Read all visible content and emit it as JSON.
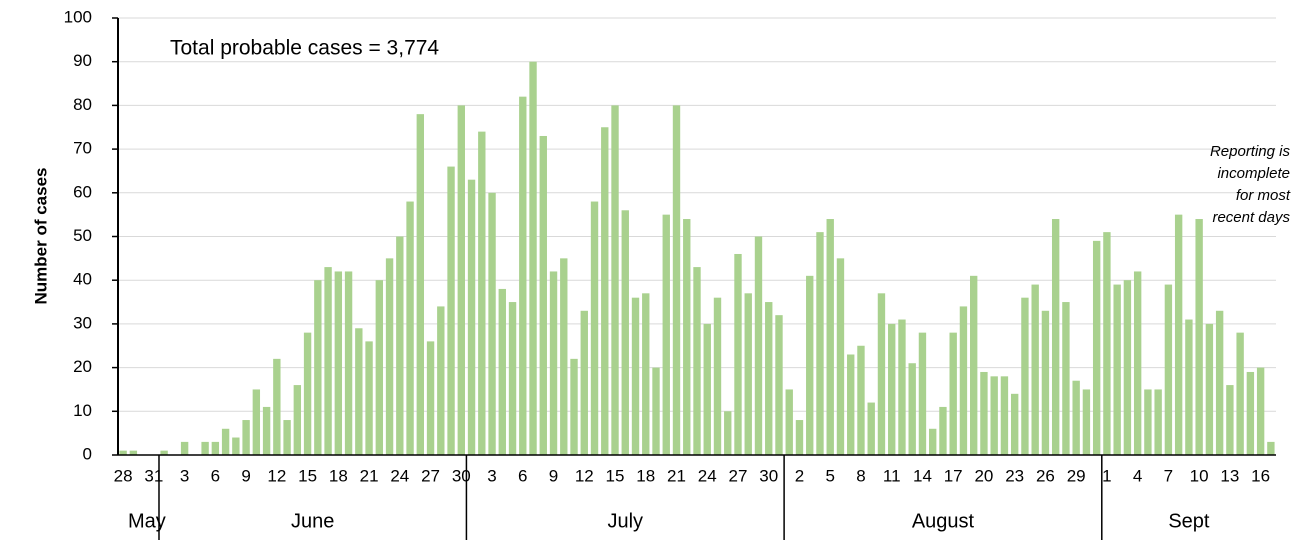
{
  "chart_data": {
    "type": "bar",
    "y_label": "Number of cases",
    "annotation": "Total probable cases = 3,774",
    "note": [
      "Reporting is",
      "incomplete",
      "for most",
      "recent days"
    ],
    "months": [
      "May",
      "June",
      "July",
      "August",
      "Sept"
    ],
    "categories": [
      "28",
      null,
      null,
      "31",
      null,
      null,
      "3",
      null,
      null,
      "6",
      null,
      null,
      "9",
      null,
      null,
      "12",
      null,
      null,
      "15",
      null,
      null,
      "18",
      null,
      null,
      "21",
      null,
      null,
      "24",
      null,
      null,
      "27",
      null,
      null,
      "30",
      null,
      null,
      "3",
      null,
      null,
      "6",
      null,
      null,
      "9",
      null,
      null,
      "12",
      null,
      null,
      "15",
      null,
      null,
      "18",
      null,
      null,
      "21",
      null,
      null,
      "24",
      null,
      null,
      "27",
      null,
      null,
      "30",
      null,
      null,
      "2",
      null,
      null,
      "5",
      null,
      null,
      "8",
      null,
      null,
      "11",
      null,
      null,
      "14",
      null,
      null,
      "17",
      null,
      null,
      "20",
      null,
      null,
      "23",
      null,
      null,
      "26",
      null,
      null,
      "29",
      null,
      null,
      "1",
      null,
      null,
      "4",
      null,
      null,
      "7",
      null,
      null,
      "10",
      null,
      null,
      "13",
      null,
      null,
      "16",
      null
    ],
    "values": [
      1,
      1,
      0,
      0,
      1,
      0,
      3,
      0,
      3,
      3,
      6,
      4,
      8,
      15,
      11,
      22,
      8,
      16,
      28,
      40,
      43,
      42,
      42,
      29,
      26,
      40,
      45,
      50,
      58,
      78,
      26,
      34,
      66,
      80,
      63,
      74,
      60,
      38,
      35,
      82,
      90,
      73,
      42,
      45,
      22,
      33,
      58,
      75,
      80,
      56,
      36,
      37,
      20,
      55,
      80,
      54,
      43,
      30,
      36,
      10,
      46,
      37,
      50,
      35,
      32,
      15,
      8,
      41,
      51,
      54,
      45,
      23,
      25,
      12,
      37,
      30,
      31,
      21,
      28,
      6,
      11,
      28,
      34,
      41,
      19,
      18,
      18,
      14,
      36,
      39,
      33,
      54,
      35,
      17,
      15,
      49,
      51,
      39,
      40,
      42,
      15,
      15,
      39,
      55,
      31,
      54,
      30,
      33,
      16,
      28,
      19,
      20,
      3
    ],
    "color": "#a9d18e",
    "ylim": [
      0,
      100
    ],
    "yticks": [
      0,
      10,
      20,
      30,
      40,
      50,
      60,
      70,
      80,
      90,
      100
    ],
    "grid": true
  }
}
